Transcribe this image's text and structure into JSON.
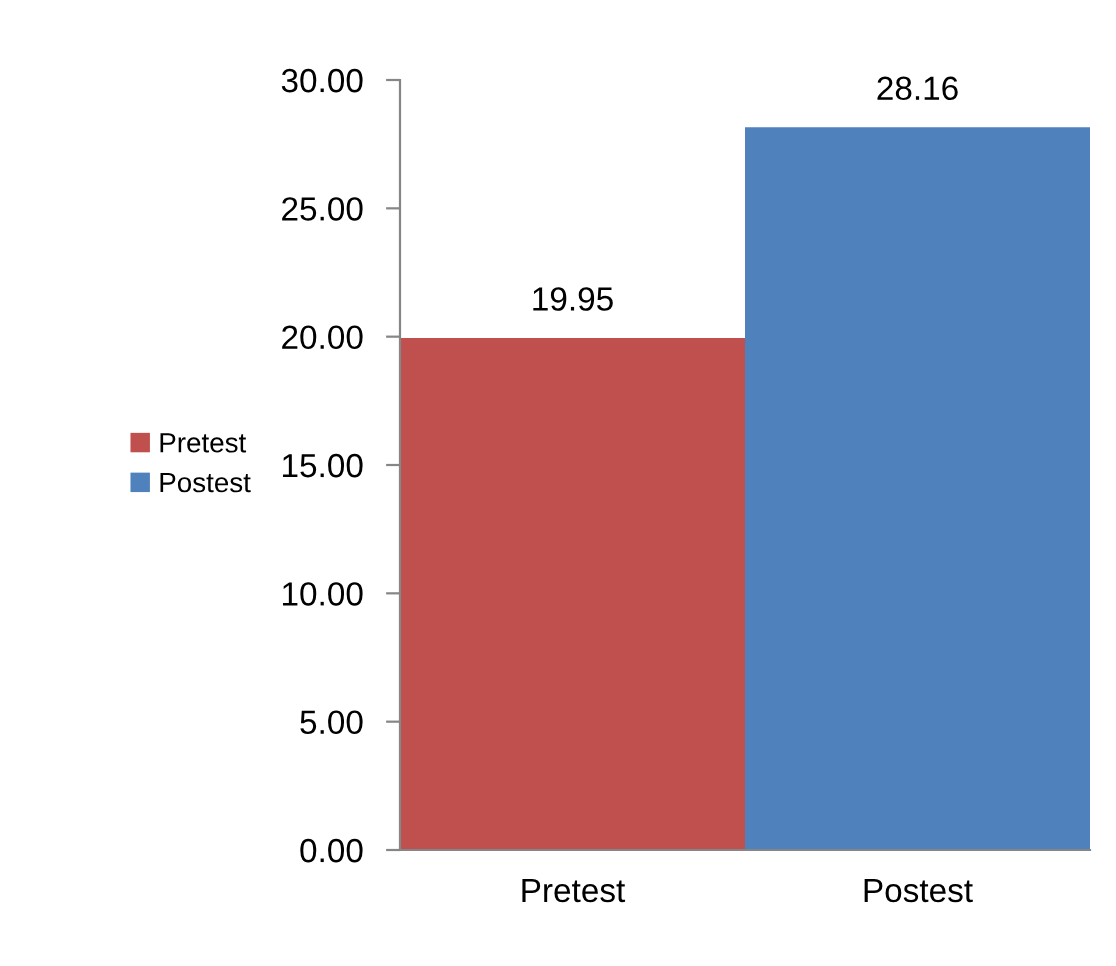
{
  "chart_data": {
    "type": "bar",
    "categories": [
      "Pretest",
      "Postest"
    ],
    "series": [
      {
        "name": "Pretest",
        "color": "#c0504d",
        "values": [
          19.95,
          null
        ]
      },
      {
        "name": "Postest",
        "color": "#4f81bd",
        "values": [
          null,
          28.16
        ]
      }
    ],
    "data_labels": true,
    "ylim": [
      0,
      30
    ],
    "yticks": [
      {
        "value": 0,
        "label": "0.00"
      },
      {
        "value": 5,
        "label": "5.00"
      },
      {
        "value": 10,
        "label": "10.00"
      },
      {
        "value": 15,
        "label": "15.00"
      },
      {
        "value": 20,
        "label": "20.00"
      },
      {
        "value": 25,
        "label": "25.00"
      },
      {
        "value": 30,
        "label": "30.00"
      }
    ],
    "grid": false,
    "legend": "left"
  }
}
